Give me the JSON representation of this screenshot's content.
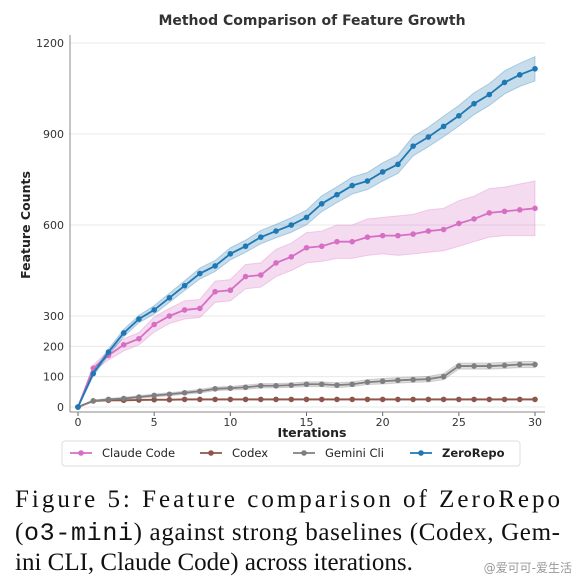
{
  "chart_data": {
    "type": "line",
    "title": "Method Comparison of Feature Growth",
    "xlabel": "Iterations",
    "ylabel": "Feature Counts",
    "x": [
      0,
      1,
      2,
      3,
      4,
      5,
      6,
      7,
      8,
      9,
      10,
      11,
      12,
      13,
      14,
      15,
      16,
      17,
      18,
      19,
      20,
      21,
      22,
      23,
      24,
      25,
      26,
      27,
      28,
      29,
      30
    ],
    "xlim": [
      0,
      30
    ],
    "ylim": [
      0,
      1200
    ],
    "xticks": [
      0,
      5,
      10,
      15,
      20,
      25,
      30
    ],
    "yticks": [
      0,
      100,
      200,
      300,
      600,
      900,
      1200
    ],
    "grid": true,
    "legend": "bottom",
    "series": [
      {
        "name": "Claude Code",
        "color": "#d66fc4",
        "values": [
          0,
          128,
          170,
          205,
          225,
          272,
          300,
          320,
          325,
          380,
          385,
          430,
          435,
          475,
          495,
          525,
          530,
          545,
          545,
          560,
          565,
          565,
          570,
          580,
          585,
          605,
          620,
          640,
          645,
          650,
          655
        ],
        "band": [
          0,
          10,
          15,
          20,
          20,
          25,
          25,
          30,
          30,
          35,
          35,
          40,
          40,
          45,
          45,
          50,
          50,
          55,
          55,
          60,
          60,
          65,
          65,
          70,
          70,
          75,
          75,
          80,
          80,
          85,
          90
        ]
      },
      {
        "name": "Codex",
        "color": "#8c564b",
        "values": [
          0,
          20,
          22,
          22,
          23,
          24,
          24,
          25,
          25,
          25,
          25,
          25,
          25,
          25,
          25,
          25,
          25,
          25,
          25,
          25,
          25,
          25,
          25,
          25,
          25,
          25,
          25,
          25,
          25,
          25,
          25
        ],
        "band": [
          0,
          2,
          2,
          2,
          2,
          2,
          2,
          2,
          2,
          2,
          2,
          2,
          2,
          2,
          2,
          2,
          2,
          2,
          2,
          2,
          2,
          2,
          2,
          2,
          2,
          2,
          2,
          2,
          2,
          2,
          2
        ]
      },
      {
        "name": "Gemini Cli",
        "color": "#7f7f7f",
        "values": [
          0,
          20,
          25,
          28,
          33,
          38,
          42,
          47,
          52,
          60,
          62,
          65,
          70,
          70,
          72,
          75,
          75,
          72,
          75,
          82,
          85,
          88,
          90,
          92,
          100,
          135,
          135,
          135,
          137,
          140,
          140
        ],
        "band": [
          0,
          3,
          3,
          4,
          4,
          5,
          5,
          5,
          6,
          6,
          6,
          7,
          7,
          7,
          7,
          8,
          8,
          8,
          8,
          8,
          9,
          9,
          9,
          9,
          10,
          10,
          10,
          10,
          10,
          10,
          10
        ]
      },
      {
        "name": "ZeroRepo",
        "color": "#1f77b4",
        "values": [
          0,
          110,
          181,
          244,
          290,
          320,
          360,
          400,
          440,
          465,
          505,
          530,
          560,
          580,
          600,
          625,
          670,
          700,
          730,
          745,
          775,
          800,
          860,
          890,
          925,
          960,
          1000,
          1030,
          1070,
          1095,
          1115
        ],
        "band": [
          0,
          8,
          10,
          12,
          12,
          14,
          15,
          16,
          18,
          18,
          20,
          20,
          22,
          22,
          24,
          24,
          26,
          26,
          28,
          28,
          30,
          30,
          32,
          32,
          34,
          34,
          36,
          36,
          38,
          38,
          40
        ]
      }
    ]
  },
  "caption": {
    "line1": "Figure 5:  Feature comparison of ZeroRepo",
    "line2_pre": "(",
    "line2_code": "o3-mini",
    "line2_post": ") against strong baselines (Codex, Gem-",
    "line3": "ini CLI, Claude Code) across iterations."
  },
  "watermark": "@爱可可-爱生活"
}
